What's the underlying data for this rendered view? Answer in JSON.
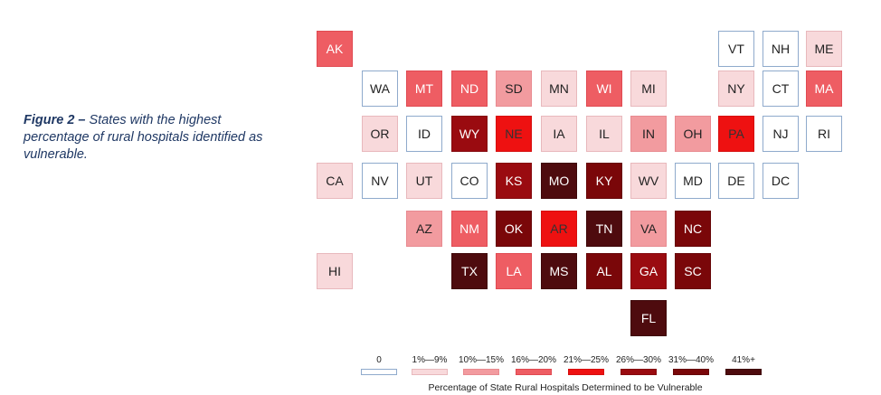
{
  "caption": {
    "label": "Figure 2 –",
    "text": "States with the highest percentage of rural hospitals identified as vulnerable."
  },
  "bins": [
    {
      "label": "0",
      "color": "#ffffff",
      "border": "#8faacc"
    },
    {
      "label": "1%—9%",
      "color": "#f8d9db",
      "border": "#e8b8bc"
    },
    {
      "label": "10%—15%",
      "color": "#f29b9f",
      "border": "#e88a90"
    },
    {
      "label": "16%—20%",
      "color": "#ee5d63",
      "border": "#e04a52"
    },
    {
      "label": "21%—25%",
      "color": "#ee1111",
      "border": "#d60f0f"
    },
    {
      "label": "26%—30%",
      "color": "#9a0b10",
      "border": "#85090e"
    },
    {
      "label": "31%—40%",
      "color": "#7a0709",
      "border": "#660608"
    },
    {
      "label": "41%+",
      "color": "#4e0b0e",
      "border": "#3e0709"
    }
  ],
  "legend_title": "Percentage of State Rural Hospitals Determined to be Vulnerable",
  "states": [
    {
      "abbr": "AK",
      "bin": 3
    },
    {
      "abbr": "VT",
      "bin": 0
    },
    {
      "abbr": "NH",
      "bin": 0
    },
    {
      "abbr": "ME",
      "bin": 1
    },
    {
      "abbr": "WA",
      "bin": 0
    },
    {
      "abbr": "MT",
      "bin": 3
    },
    {
      "abbr": "ND",
      "bin": 3
    },
    {
      "abbr": "SD",
      "bin": 2
    },
    {
      "abbr": "MN",
      "bin": 1
    },
    {
      "abbr": "WI",
      "bin": 3
    },
    {
      "abbr": "MI",
      "bin": 1
    },
    {
      "abbr": "NY",
      "bin": 1
    },
    {
      "abbr": "CT",
      "bin": 0
    },
    {
      "abbr": "MA",
      "bin": 3
    },
    {
      "abbr": "OR",
      "bin": 1
    },
    {
      "abbr": "ID",
      "bin": 0
    },
    {
      "abbr": "WY",
      "bin": 5
    },
    {
      "abbr": "NE",
      "bin": 4
    },
    {
      "abbr": "IA",
      "bin": 1
    },
    {
      "abbr": "IL",
      "bin": 1
    },
    {
      "abbr": "IN",
      "bin": 2
    },
    {
      "abbr": "OH",
      "bin": 2
    },
    {
      "abbr": "PA",
      "bin": 4
    },
    {
      "abbr": "NJ",
      "bin": 0
    },
    {
      "abbr": "RI",
      "bin": 0
    },
    {
      "abbr": "CA",
      "bin": 1
    },
    {
      "abbr": "NV",
      "bin": 0
    },
    {
      "abbr": "UT",
      "bin": 1
    },
    {
      "abbr": "CO",
      "bin": 0
    },
    {
      "abbr": "KS",
      "bin": 5
    },
    {
      "abbr": "MO",
      "bin": 7
    },
    {
      "abbr": "KY",
      "bin": 6
    },
    {
      "abbr": "WV",
      "bin": 1
    },
    {
      "abbr": "MD",
      "bin": 0
    },
    {
      "abbr": "DE",
      "bin": 0
    },
    {
      "abbr": "DC",
      "bin": 0
    },
    {
      "abbr": "AZ",
      "bin": 2
    },
    {
      "abbr": "NM",
      "bin": 3
    },
    {
      "abbr": "OK",
      "bin": 6
    },
    {
      "abbr": "AR",
      "bin": 4
    },
    {
      "abbr": "TN",
      "bin": 7
    },
    {
      "abbr": "VA",
      "bin": 2
    },
    {
      "abbr": "NC",
      "bin": 6
    },
    {
      "abbr": "HI",
      "bin": 1
    },
    {
      "abbr": "TX",
      "bin": 7
    },
    {
      "abbr": "LA",
      "bin": 3
    },
    {
      "abbr": "MS",
      "bin": 7
    },
    {
      "abbr": "AL",
      "bin": 6
    },
    {
      "abbr": "GA",
      "bin": 5
    },
    {
      "abbr": "SC",
      "bin": 6
    },
    {
      "abbr": "FL",
      "bin": 7
    }
  ]
}
